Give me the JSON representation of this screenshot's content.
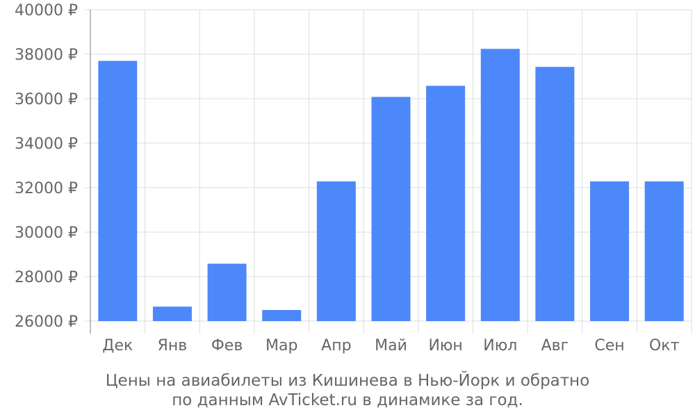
{
  "chart_data": {
    "type": "bar",
    "categories": [
      "Дек",
      "Янв",
      "Фев",
      "Мар",
      "Апр",
      "Май",
      "Июн",
      "Июл",
      "Авг",
      "Сен",
      "Окт"
    ],
    "values": [
      37700,
      26650,
      28580,
      26500,
      32280,
      36080,
      36580,
      38240,
      37430,
      32280,
      32280
    ],
    "ylim": [
      26000,
      40000
    ],
    "yticks": [
      26000,
      28000,
      30000,
      32000,
      34000,
      36000,
      38000,
      40000
    ],
    "ytick_labels": [
      "26000 ₽",
      "28000 ₽",
      "30000 ₽",
      "32000 ₽",
      "34000 ₽",
      "36000 ₽",
      "38000 ₽",
      "40000 ₽"
    ],
    "grid": true,
    "bar_color": "#4d88fa",
    "title_lines": [
      "Цены на авиабилеты из Кишинева в Нью-Йорк и обратно",
      "по данным AvTicket.ru в динамике за год."
    ]
  },
  "colors": {
    "grid": "#dddddd",
    "axis": "#aaaaaa",
    "text": "#666666"
  }
}
